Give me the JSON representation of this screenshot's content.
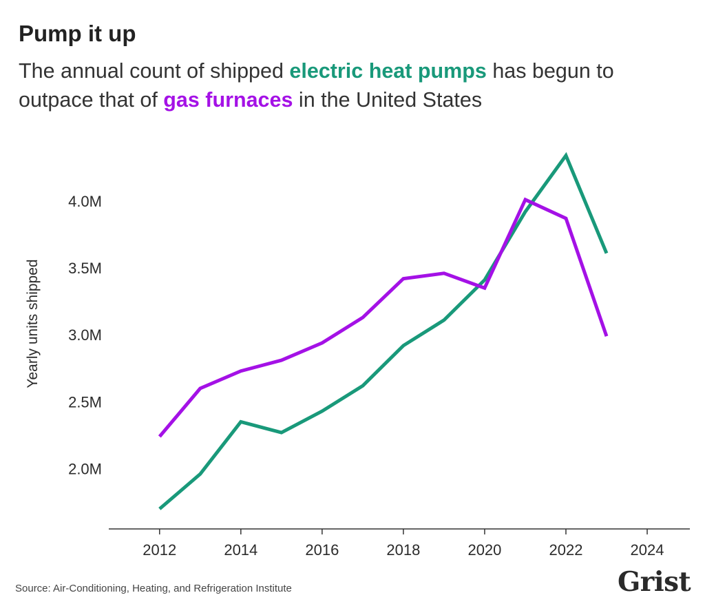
{
  "header": {
    "title": "Pump it up",
    "subtitle_part1": "The annual count of shipped ",
    "subtitle_hp": "electric heat pumps",
    "subtitle_part2": " has begun to outpace that of ",
    "subtitle_gf": "gas furnaces",
    "subtitle_part3": " in the United States"
  },
  "footer": {
    "source": "Source: Air-Conditioning, Heating, and Refrigeration Institute",
    "logo": "Grist"
  },
  "chart_data": {
    "type": "line",
    "title": "Pump it up",
    "subtitle": "The annual count of shipped electric heat pumps has begun to outpace that of gas furnaces in the United States",
    "xlabel": "",
    "ylabel": "Yearly units shipped",
    "xlim": [
      2010.75,
      2025.05
    ],
    "ylim": [
      1.55,
      4.55
    ],
    "x_ticks": [
      2012,
      2014,
      2016,
      2018,
      2020,
      2022,
      2024
    ],
    "x_tick_labels": [
      "2012",
      "2014",
      "2016",
      "2018",
      "2020",
      "2022",
      "2024"
    ],
    "y_ticks": [
      2.0,
      2.5,
      3.0,
      3.5,
      4.0
    ],
    "y_tick_labels": [
      "2.0M",
      "2.5M",
      "3.0M",
      "3.5M",
      "4.0M"
    ],
    "grid": false,
    "legend": "none (series identified by colored subtitle text)",
    "x": [
      2012,
      2013,
      2014,
      2015,
      2016,
      2017,
      2018,
      2019,
      2020,
      2021,
      2022,
      2023
    ],
    "series": [
      {
        "name": "electric heat pumps",
        "color": "#19997a",
        "values": [
          1.7,
          1.96,
          2.35,
          2.27,
          2.43,
          2.62,
          2.92,
          3.11,
          3.41,
          3.92,
          4.34,
          3.61
        ]
      },
      {
        "name": "gas furnaces",
        "color": "#a411e6",
        "values": [
          2.24,
          2.6,
          2.73,
          2.81,
          2.94,
          3.13,
          3.42,
          3.46,
          3.35,
          4.01,
          3.87,
          2.99
        ]
      }
    ],
    "axis_color": "#333333"
  }
}
